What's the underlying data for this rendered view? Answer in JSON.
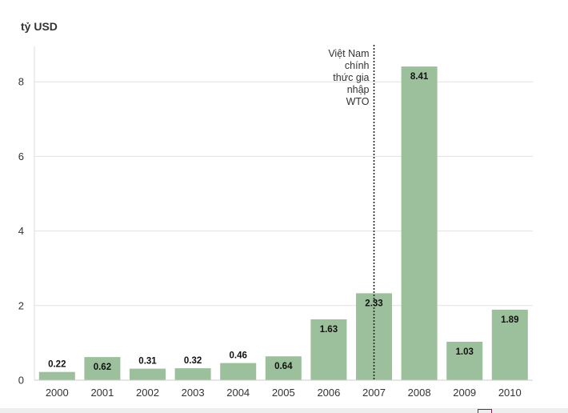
{
  "chart_data": {
    "type": "bar",
    "unit_label": "tỷ USD",
    "categories": [
      "2000",
      "2001",
      "2002",
      "2003",
      "2004",
      "2005",
      "2006",
      "2007",
      "2008",
      "2009",
      "2010"
    ],
    "values": [
      0.22,
      0.62,
      0.31,
      0.32,
      0.46,
      0.64,
      1.63,
      2.33,
      8.41,
      1.03,
      1.89
    ],
    "value_labels": [
      "0.22",
      "0.62",
      "0.31",
      "0.32",
      "0.46",
      "0.64",
      "1.63",
      "2.33",
      "8.41",
      "1.03",
      "1.89"
    ],
    "y_ticks": [
      0,
      2,
      4,
      6,
      8
    ],
    "ylim": [
      0,
      9
    ],
    "grid": true,
    "bar_color": "#9cbf9c",
    "annotation": {
      "at_category": "2007",
      "lines": [
        "Việt Nam",
        "chính",
        "thức gia",
        "nhập",
        "WTO"
      ]
    }
  }
}
